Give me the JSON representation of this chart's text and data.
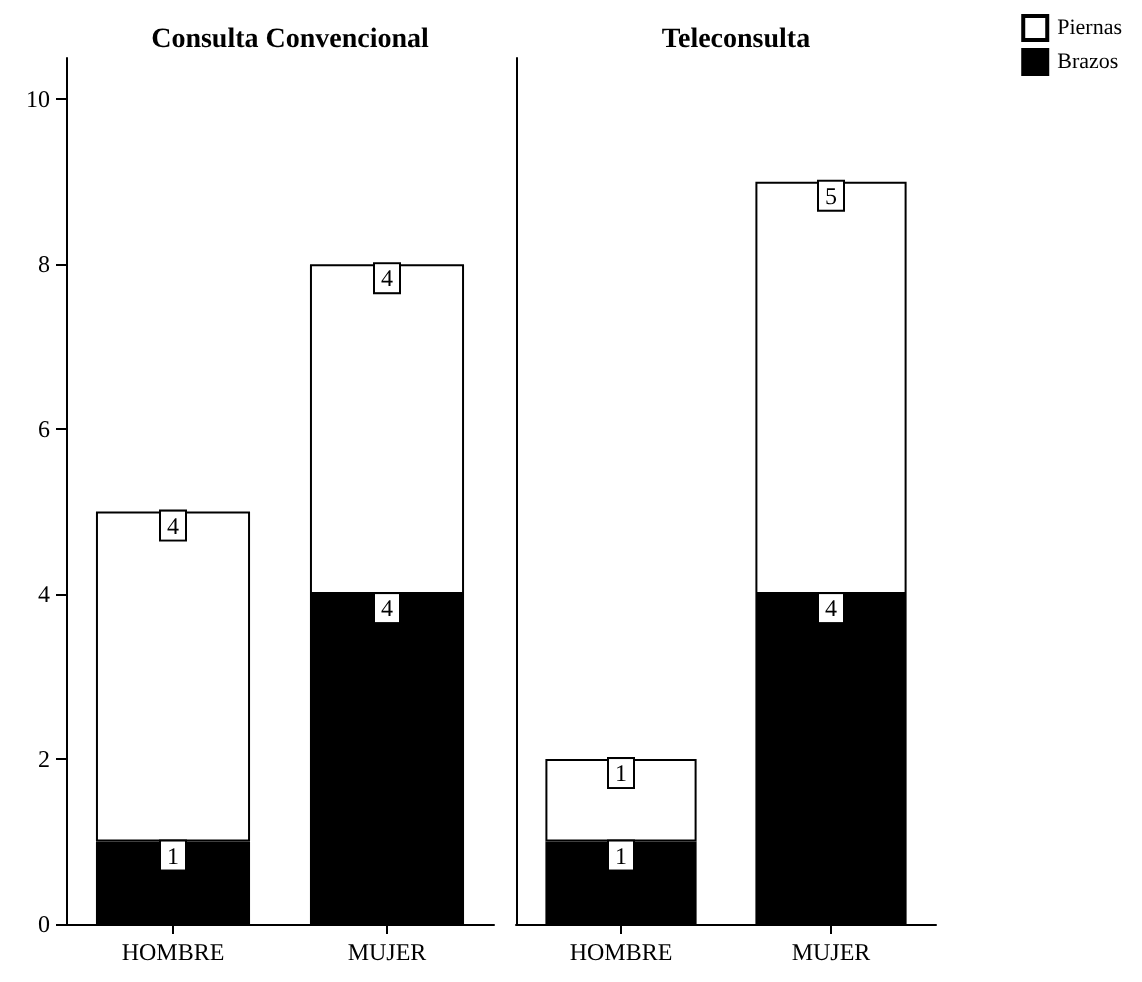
{
  "chart_data": [
    {
      "type": "bar",
      "title": "Consulta Convencional",
      "categories": [
        "HOMBRE",
        "MUJER"
      ],
      "stacked": true,
      "data_labels": true,
      "ylim": [
        0,
        10.5
      ],
      "yticks": [
        0,
        2,
        4,
        6,
        8,
        10
      ],
      "series": [
        {
          "color": "#000000",
          "values": [
            1,
            4
          ]
        },
        {
          "color": "#ffffff",
          "values": [
            4,
            4
          ]
        }
      ]
    },
    {
      "type": "bar",
      "title": "Teleconsulta",
      "categories": [
        "HOMBRE",
        "MUJER"
      ],
      "stacked": true,
      "data_labels": true,
      "ylim": [
        0,
        10.5
      ],
      "yticks": [
        0,
        2,
        4,
        6,
        8,
        10
      ],
      "tick_labels": "x",
      "legend": "top right",
      "series": [
        {
          "name": "Brazos",
          "color": "#000000",
          "values": [
            1,
            4
          ]
        },
        {
          "name": "Piernas",
          "color": "#ffffff",
          "values": [
            1,
            5
          ]
        }
      ]
    }
  ]
}
